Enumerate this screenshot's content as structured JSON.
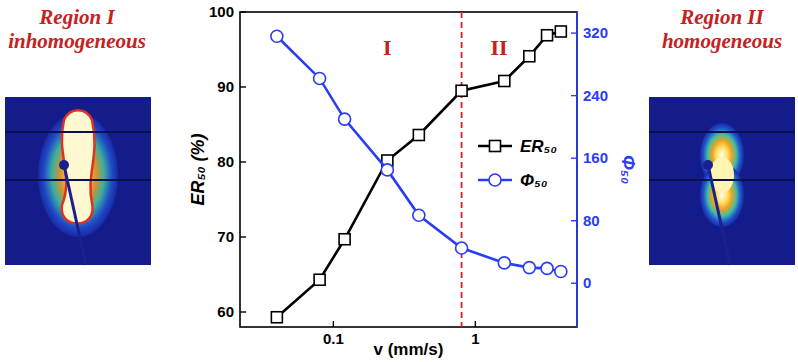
{
  "chart_data": {
    "type": "line",
    "x_label": "v (mm/s)",
    "y_label": "ER₅₀ (%)",
    "y2_label": "Φ₅₀",
    "log": "x",
    "x": [
      0.04,
      0.08,
      0.12,
      0.24,
      0.4,
      0.8,
      1.6,
      2.4,
      3.2,
      4.0
    ],
    "xlim": [
      0.022,
      5.2
    ],
    "xticks": [
      0.1,
      1
    ],
    "ylim": [
      58,
      100
    ],
    "yticks": [
      60,
      70,
      80,
      90,
      100
    ],
    "y2lim": [
      -56,
      347
    ],
    "y2ticks": [
      0,
      80,
      160,
      240,
      320
    ],
    "legend": "right",
    "series": [
      {
        "name": "ER₅₀",
        "color": "#000000",
        "marker": "square",
        "line_style": "solid",
        "values": [
          59.3,
          64.3,
          69.7,
          80.2,
          83.6,
          89.5,
          90.8,
          94.1,
          96.9,
          97.4
        ]
      },
      {
        "name": "Φ₅₀",
        "color": "#2b3cf5",
        "marker": "circle",
        "line_style": "solid",
        "axis": "y2",
        "values": [
          316,
          262,
          210,
          145,
          87,
          45,
          26,
          20,
          19,
          15
        ]
      }
    ],
    "vline": {
      "x": 0.8,
      "color": "#e0201b",
      "line_style": "dashed"
    },
    "annotations": [
      {
        "text": "I",
        "x": 0.24,
        "y": 94.3,
        "color": "#c8201c"
      },
      {
        "text": "II",
        "x": 1.47,
        "y": 94.3,
        "color": "#c8201c"
      }
    ],
    "panels": [
      {
        "title": "Region I",
        "subtitle": "inhomogeneous",
        "side": "left",
        "pattern": "inhomogeneous",
        "color": "#c8201c"
      },
      {
        "title": "Region II",
        "subtitle": "homogeneous",
        "side": "right",
        "pattern": "homogeneous",
        "color": "#c8201c"
      }
    ]
  }
}
